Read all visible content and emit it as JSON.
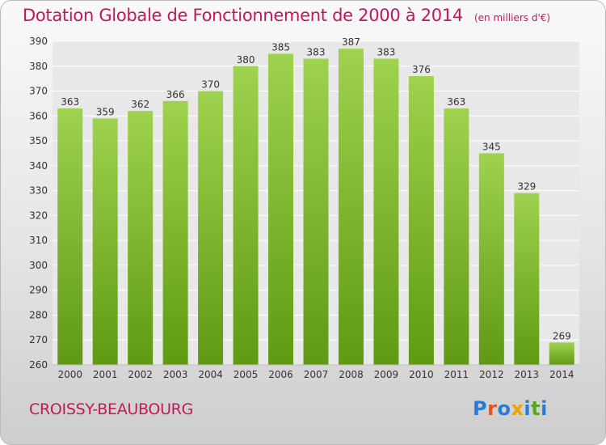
{
  "title": "Dotation Globale de Fonctionnement de 2000 à 2014",
  "subtitle": "(en milliers d'€)",
  "commune": "CROISSY-BEAUBOURG",
  "logo": {
    "text": "Proxiti",
    "colors": [
      "#2b7bd6",
      "#e8521c",
      "#2b7bd6",
      "#f0a000",
      "#2b7bd6",
      "#5aa820",
      "#2b7bd6"
    ]
  },
  "colors": {
    "bar_top": "#9fd24e",
    "bar_bottom": "#5f9a12",
    "title": "#c2185b",
    "grid": "#ffffff",
    "plot_bg": "#e8e8e8"
  },
  "chart_data": {
    "type": "bar",
    "categories": [
      "2000",
      "2001",
      "2002",
      "2003",
      "2004",
      "2005",
      "2006",
      "2007",
      "2008",
      "2009",
      "2010",
      "2011",
      "2012",
      "2013",
      "2014"
    ],
    "values": [
      363,
      359,
      362,
      366,
      370,
      380,
      385,
      383,
      387,
      383,
      376,
      363,
      345,
      329,
      269
    ],
    "title": "Dotation Globale de Fonctionnement de 2000 à 2014",
    "ylabel": "",
    "xlabel": "",
    "ylim": [
      260,
      390
    ],
    "yticks": [
      260,
      270,
      280,
      290,
      300,
      310,
      320,
      330,
      340,
      350,
      360,
      370,
      380,
      390
    ],
    "grid": true
  }
}
